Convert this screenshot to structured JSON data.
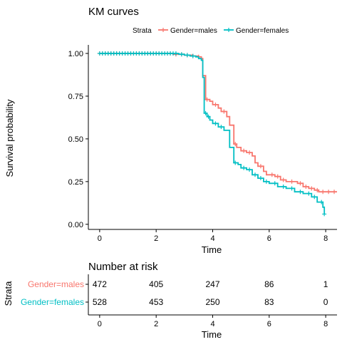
{
  "colors": {
    "males": "#F8766D",
    "females": "#00BFC4",
    "axis": "#000000"
  },
  "km_plot": {
    "title": "KM curves",
    "legend_title": "Strata",
    "xlabel": "Time",
    "ylabel": "Survival probability"
  },
  "risk_table": {
    "title": "Number at risk",
    "ylabel": "Strata",
    "xlabel": "Time"
  },
  "chart_data": [
    {
      "type": "line",
      "title": "KM curves",
      "xlabel": "Time",
      "ylabel": "Survival probability",
      "xlim": [
        -0.4,
        8.4
      ],
      "ylim": [
        -0.03,
        1.05
      ],
      "x_ticks": [
        0,
        2,
        4,
        6,
        8
      ],
      "y_ticks": [
        0.0,
        0.25,
        0.5,
        0.75,
        1.0
      ],
      "y_tick_labels": [
        "0.00",
        "0.25",
        "0.50",
        "0.75",
        "1.00"
      ],
      "grid": false,
      "legend_title": "Strata",
      "legend_position": "top",
      "series": [
        {
          "name": "Gender=males",
          "color": "#F8766D",
          "steps": [
            [
              0,
              1.0
            ],
            [
              2.6,
              0.995
            ],
            [
              3.0,
              0.99
            ],
            [
              3.3,
              0.985
            ],
            [
              3.5,
              0.98
            ],
            [
              3.6,
              0.97
            ],
            [
              3.65,
              0.87
            ],
            [
              3.75,
              0.73
            ],
            [
              3.9,
              0.72
            ],
            [
              4.0,
              0.7
            ],
            [
              4.2,
              0.68
            ],
            [
              4.3,
              0.66
            ],
            [
              4.5,
              0.63
            ],
            [
              4.6,
              0.58
            ],
            [
              4.75,
              0.47
            ],
            [
              4.85,
              0.45
            ],
            [
              5.0,
              0.43
            ],
            [
              5.2,
              0.42
            ],
            [
              5.4,
              0.4
            ],
            [
              5.5,
              0.36
            ],
            [
              5.6,
              0.34
            ],
            [
              5.8,
              0.31
            ],
            [
              5.9,
              0.29
            ],
            [
              6.2,
              0.28
            ],
            [
              6.4,
              0.26
            ],
            [
              6.6,
              0.25
            ],
            [
              7.0,
              0.24
            ],
            [
              7.2,
              0.22
            ],
            [
              7.4,
              0.21
            ],
            [
              7.6,
              0.2
            ],
            [
              7.75,
              0.19
            ],
            [
              8.4,
              0.19
            ]
          ],
          "censor_times": [
            0,
            0.1,
            0.2,
            0.3,
            0.4,
            0.5,
            0.6,
            0.7,
            0.8,
            0.9,
            1.0,
            1.1,
            1.2,
            1.3,
            1.4,
            1.5,
            1.6,
            1.7,
            1.8,
            1.9,
            2.0,
            2.1,
            2.2,
            2.3,
            2.4,
            2.5,
            2.7,
            2.9,
            3.1,
            3.3,
            3.5,
            3.8,
            4.1,
            4.4,
            4.8,
            5.1,
            5.3,
            5.7,
            6.1,
            6.3,
            6.5,
            6.8,
            7.1,
            7.3,
            7.5,
            7.7,
            7.9,
            8.1,
            8.3
          ]
        },
        {
          "name": "Gender=females",
          "color": "#00BFC4",
          "steps": [
            [
              0,
              1.0
            ],
            [
              2.8,
              0.995
            ],
            [
              3.0,
              0.99
            ],
            [
              3.2,
              0.985
            ],
            [
              3.4,
              0.98
            ],
            [
              3.5,
              0.97
            ],
            [
              3.6,
              0.96
            ],
            [
              3.65,
              0.86
            ],
            [
              3.7,
              0.65
            ],
            [
              3.8,
              0.63
            ],
            [
              3.9,
              0.61
            ],
            [
              4.0,
              0.59
            ],
            [
              4.2,
              0.57
            ],
            [
              4.4,
              0.55
            ],
            [
              4.6,
              0.45
            ],
            [
              4.75,
              0.36
            ],
            [
              4.9,
              0.35
            ],
            [
              5.0,
              0.33
            ],
            [
              5.2,
              0.32
            ],
            [
              5.4,
              0.29
            ],
            [
              5.6,
              0.27
            ],
            [
              5.8,
              0.25
            ],
            [
              6.0,
              0.24
            ],
            [
              6.3,
              0.22
            ],
            [
              6.6,
              0.21
            ],
            [
              6.9,
              0.19
            ],
            [
              7.2,
              0.18
            ],
            [
              7.5,
              0.16
            ],
            [
              7.7,
              0.13
            ],
            [
              7.9,
              0.1
            ],
            [
              7.95,
              0.06
            ]
          ],
          "censor_times": [
            0,
            0.1,
            0.2,
            0.3,
            0.4,
            0.5,
            0.6,
            0.7,
            0.8,
            0.9,
            1.0,
            1.1,
            1.2,
            1.3,
            1.4,
            1.5,
            1.6,
            1.7,
            1.8,
            1.9,
            2.0,
            2.1,
            2.2,
            2.3,
            2.4,
            2.5,
            2.6,
            2.7,
            2.9,
            3.1,
            3.3,
            3.75,
            3.85,
            4.1,
            4.3,
            4.8,
            5.1,
            5.3,
            5.5,
            5.7,
            5.9,
            6.2,
            6.5,
            6.8,
            7.1,
            7.4,
            7.6,
            7.85,
            7.95
          ]
        }
      ]
    },
    {
      "type": "table",
      "title": "Number at risk",
      "xlabel": "Time",
      "ylabel": "Strata",
      "times": [
        0,
        2,
        4,
        6,
        8
      ],
      "rows": [
        {
          "name": "Gender=males",
          "color": "#F8766D",
          "values": [
            472,
            405,
            247,
            86,
            1
          ]
        },
        {
          "name": "Gender=females",
          "color": "#00BFC4",
          "values": [
            528,
            453,
            250,
            83,
            0
          ]
        }
      ]
    }
  ]
}
